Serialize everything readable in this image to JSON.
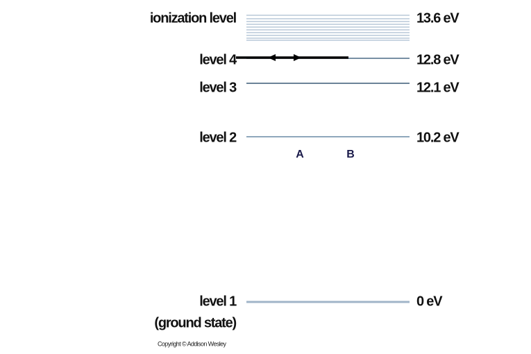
{
  "levels": [
    {
      "label": "ionization level",
      "energy": "13.6 eV"
    },
    {
      "label": "level 4",
      "energy": "12.8 eV"
    },
    {
      "label": "level 3",
      "energy": "12.1 eV"
    },
    {
      "label": "level 2",
      "energy": "10.2 eV"
    },
    {
      "label": "level 1",
      "sublabel": "(ground state)",
      "energy": "0 eV"
    }
  ],
  "markers": [
    "A",
    "B"
  ],
  "copyright": "Copyright © Addison Wesley"
}
